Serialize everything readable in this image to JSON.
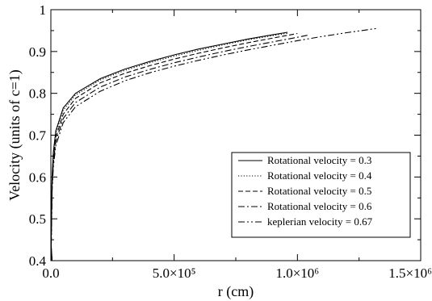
{
  "chart_data": {
    "type": "line",
    "xlabel": "r (cm)",
    "ylabel": "Velocity (units of c=1)",
    "xlim": [
      0,
      1500000
    ],
    "ylim": [
      0.4,
      1.0
    ],
    "x_ticks": [
      {
        "value": 0,
        "label": "0.0"
      },
      {
        "value": 500000,
        "label": "5.0×10⁵"
      },
      {
        "value": 1000000,
        "label": "1.0×10⁶"
      },
      {
        "value": 1500000,
        "label": "1.5×10⁶"
      }
    ],
    "y_ticks": [
      {
        "value": 0.4,
        "label": "0.4"
      },
      {
        "value": 0.5,
        "label": "0.5"
      },
      {
        "value": 0.6,
        "label": "0.6"
      },
      {
        "value": 0.7,
        "label": "0.7"
      },
      {
        "value": 0.8,
        "label": "0.8"
      },
      {
        "value": 0.9,
        "label": "0.9"
      },
      {
        "value": 1.0,
        "label": "1"
      }
    ],
    "grid": false,
    "legend_position": "bottom-right",
    "series": [
      {
        "name": "Rotational velocity = 0.3",
        "dash": "solid",
        "x": [
          1000,
          5000,
          10000,
          20000,
          50000,
          100000,
          200000,
          300000,
          400000,
          500000,
          600000,
          700000,
          800000,
          900000,
          960000
        ],
        "y": [
          0.44,
          0.6,
          0.66,
          0.71,
          0.765,
          0.8,
          0.835,
          0.858,
          0.876,
          0.892,
          0.906,
          0.918,
          0.93,
          0.94,
          0.946
        ]
      },
      {
        "name": "Rotational velocity = 0.4",
        "dash": "dotted",
        "x": [
          1000,
          5000,
          10000,
          20000,
          50000,
          100000,
          200000,
          300000,
          400000,
          500000,
          600000,
          700000,
          800000,
          900000,
          965000
        ],
        "y": [
          0.44,
          0.595,
          0.655,
          0.705,
          0.76,
          0.796,
          0.832,
          0.855,
          0.873,
          0.889,
          0.903,
          0.916,
          0.928,
          0.938,
          0.944
        ]
      },
      {
        "name": "Rotational velocity = 0.5",
        "dash": "dashed",
        "x": [
          1000,
          5000,
          10000,
          20000,
          50000,
          100000,
          200000,
          300000,
          400000,
          500000,
          600000,
          700000,
          800000,
          900000,
          1000000
        ],
        "y": [
          0.43,
          0.585,
          0.645,
          0.695,
          0.75,
          0.788,
          0.825,
          0.848,
          0.866,
          0.882,
          0.896,
          0.909,
          0.921,
          0.932,
          0.943
        ]
      },
      {
        "name": "Rotational velocity = 0.6",
        "dash": "dashdot",
        "x": [
          1000,
          5000,
          10000,
          20000,
          50000,
          100000,
          200000,
          300000,
          400000,
          500000,
          600000,
          700000,
          800000,
          900000,
          1000000,
          1050000
        ],
        "y": [
          0.42,
          0.575,
          0.635,
          0.685,
          0.74,
          0.778,
          0.815,
          0.839,
          0.857,
          0.873,
          0.887,
          0.9,
          0.912,
          0.923,
          0.934,
          0.94
        ]
      },
      {
        "name": "keplerian velocity = 0.67",
        "dash": "dashdotdot",
        "x": [
          1000,
          5000,
          10000,
          20000,
          50000,
          100000,
          200000,
          300000,
          400000,
          500000,
          600000,
          700000,
          800000,
          900000,
          1000000,
          1100000,
          1200000,
          1320000
        ],
        "y": [
          0.41,
          0.565,
          0.625,
          0.675,
          0.73,
          0.768,
          0.805,
          0.83,
          0.849,
          0.865,
          0.879,
          0.892,
          0.904,
          0.915,
          0.926,
          0.936,
          0.945,
          0.955
        ]
      }
    ]
  }
}
